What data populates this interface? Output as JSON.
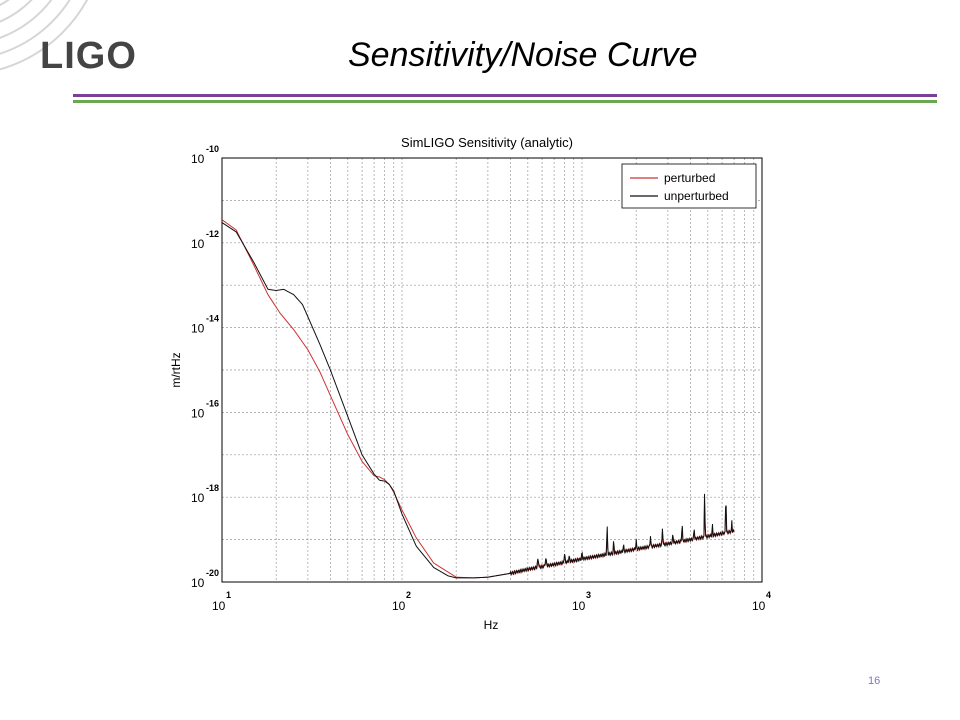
{
  "slide": {
    "logo": "LIGO",
    "title": "Sensitivity/Noise Curve",
    "page_number": "16",
    "colors": {
      "rule_top": "#7b3f98",
      "rule_bottom": "#6aa84f",
      "logo": "#444444",
      "page_number": "#7777cc"
    }
  },
  "chart_data": {
    "type": "line",
    "title": "SimLIGO Sensitivity (analytic)",
    "xlabel": "Hz",
    "ylabel": "m/rtHz",
    "x_scale": "log",
    "y_scale": "log",
    "xlim": [
      10,
      10000
    ],
    "ylim": [
      1e-20,
      1e-10
    ],
    "x_ticks": [
      {
        "base": "10",
        "exp": "1",
        "value": 10
      },
      {
        "base": "10",
        "exp": "2",
        "value": 100
      },
      {
        "base": "10",
        "exp": "3",
        "value": 1000
      },
      {
        "base": "10",
        "exp": "4",
        "value": 10000
      }
    ],
    "y_ticks": [
      {
        "base": "10",
        "exp": "-10",
        "value": 1e-10
      },
      {
        "base": "10",
        "exp": "-12",
        "value": 1e-12
      },
      {
        "base": "10",
        "exp": "-14",
        "value": 1e-14
      },
      {
        "base": "10",
        "exp": "-16",
        "value": 1e-16
      },
      {
        "base": "10",
        "exp": "-18",
        "value": 1e-18
      },
      {
        "base": "10",
        "exp": "-20",
        "value": 1e-20
      }
    ],
    "grid": true,
    "legend_position": "top-right",
    "series": [
      {
        "name": "perturbed",
        "color": "#cc3333",
        "x": [
          10,
          12,
          15,
          18,
          21,
          25,
          30,
          35,
          40,
          50,
          60,
          70,
          75,
          80,
          85,
          90,
          100,
          120,
          150,
          200,
          250,
          300,
          400,
          500,
          700,
          1000,
          1500,
          2000,
          3000,
          4000,
          5000,
          6000,
          7000
        ],
        "y": [
          3.5e-12,
          2e-12,
          3e-13,
          6e-14,
          2.2e-14,
          9e-15,
          3e-15,
          9e-16,
          2.5e-16,
          3e-17,
          7e-18,
          3.2e-18,
          3e-18,
          2.6e-18,
          2e-18,
          1.3e-18,
          5e-19,
          1.1e-19,
          2.8e-20,
          1.3e-20,
          1.25e-20,
          1.3e-20,
          1.6e-20,
          2e-20,
          2.6e-20,
          3.5e-20,
          4.8e-20,
          6e-20,
          8e-20,
          1e-19,
          1.2e-19,
          1.4e-19,
          1.6e-19
        ]
      },
      {
        "name": "unperturbed",
        "color": "#111111",
        "x": [
          10,
          12,
          15,
          18,
          20,
          22,
          25,
          28,
          30,
          35,
          40,
          50,
          60,
          70,
          75,
          80,
          85,
          90,
          100,
          120,
          150,
          180,
          200,
          250,
          300,
          400,
          500,
          700,
          1000,
          1500,
          2000,
          3000,
          4000,
          5000,
          6000,
          7000
        ],
        "y": [
          3e-12,
          1.8e-12,
          3.5e-13,
          8e-14,
          7.5e-14,
          8e-14,
          6e-14,
          3.5e-14,
          1.8e-14,
          4e-15,
          1e-15,
          8e-17,
          1e-17,
          3.5e-18,
          2.5e-18,
          2.4e-18,
          2e-18,
          1.4e-18,
          4e-19,
          7e-20,
          2.2e-20,
          1.4e-20,
          1.25e-20,
          1.25e-20,
          1.3e-20,
          1.6e-20,
          2e-20,
          2.6e-20,
          3.5e-20,
          4.8e-20,
          6e-20,
          8e-20,
          1e-19,
          1.2e-19,
          1.4e-19,
          1.6e-19
        ]
      }
    ],
    "line_features": [
      {
        "f": 570,
        "peak": 3.5e-20,
        "width": 0.008
      },
      {
        "f": 630,
        "peak": 3.5e-20,
        "width": 0.008
      },
      {
        "f": 800,
        "peak": 4.5e-20,
        "width": 0.006
      },
      {
        "f": 850,
        "peak": 4e-20,
        "width": 0.006
      },
      {
        "f": 1000,
        "peak": 5e-20,
        "width": 0.005
      },
      {
        "f": 1380,
        "peak": 2e-19,
        "width": 0.004
      },
      {
        "f": 1500,
        "peak": 1e-19,
        "width": 0.004
      },
      {
        "f": 1700,
        "peak": 8e-20,
        "width": 0.004
      },
      {
        "f": 2000,
        "peak": 1e-19,
        "width": 0.004
      },
      {
        "f": 2400,
        "peak": 1.3e-19,
        "width": 0.004
      },
      {
        "f": 2800,
        "peak": 2e-19,
        "width": 0.004
      },
      {
        "f": 3200,
        "peak": 1.5e-19,
        "width": 0.004
      },
      {
        "f": 3600,
        "peak": 2.5e-19,
        "width": 0.004
      },
      {
        "f": 4200,
        "peak": 2e-19,
        "width": 0.004
      },
      {
        "f": 4800,
        "peak": 1.5e-18,
        "width": 0.003
      },
      {
        "f": 5300,
        "peak": 2.5e-19,
        "width": 0.003
      },
      {
        "f": 6300,
        "peak": 1.2e-18,
        "width": 0.003
      },
      {
        "f": 6800,
        "peak": 3e-19,
        "width": 0.003
      }
    ]
  }
}
